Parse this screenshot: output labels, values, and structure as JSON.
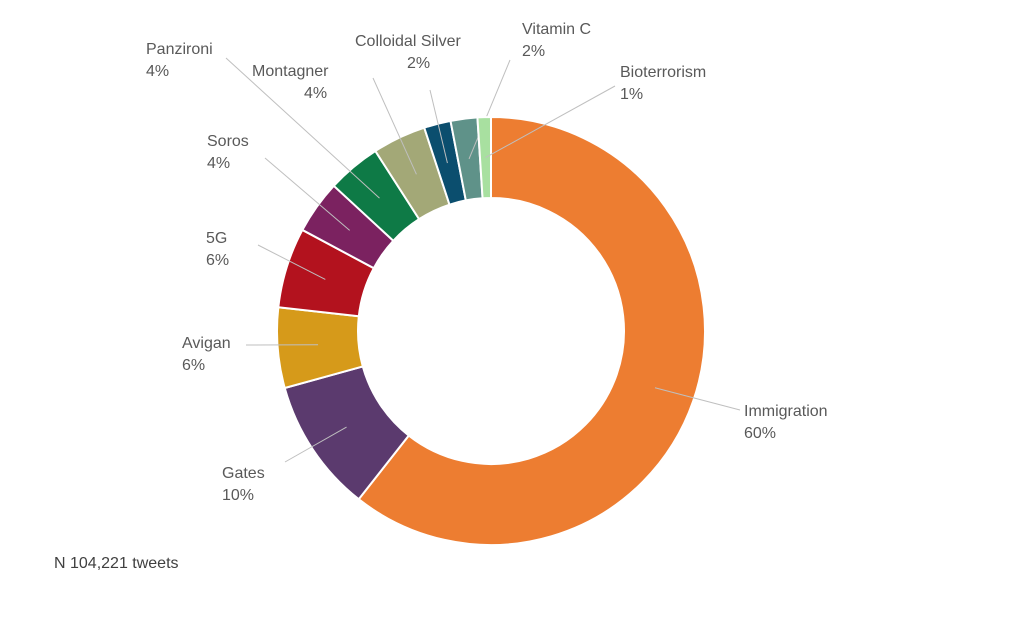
{
  "chart_data": {
    "type": "pie",
    "variant": "donut",
    "slices": [
      {
        "label": "Immigration",
        "percent_label": "60%",
        "value": 60,
        "color": "#ED7D31"
      },
      {
        "label": "Gates",
        "percent_label": "10%",
        "value": 10,
        "color": "#5B3A6E"
      },
      {
        "label": "Avigan",
        "percent_label": "6%",
        "value": 6,
        "color": "#D69A1A"
      },
      {
        "label": "5G",
        "percent_label": "6%",
        "value": 6,
        "color": "#B3121E"
      },
      {
        "label": "Soros",
        "percent_label": "4%",
        "value": 4,
        "color": "#7B2260"
      },
      {
        "label": "Panzironi",
        "percent_label": "4%",
        "value": 4,
        "color": "#0E7A46"
      },
      {
        "label": "Montagner",
        "percent_label": "4%",
        "value": 4,
        "color": "#A3A877"
      },
      {
        "label": "Colloidal Silver",
        "percent_label": "2%",
        "value": 2,
        "color": "#0B4E6E"
      },
      {
        "label": "Vitamin C",
        "percent_label": "2%",
        "value": 2,
        "color": "#5F9289"
      },
      {
        "label": "Bioterrorism",
        "percent_label": "1%",
        "value": 1,
        "color": "#A8E0A0"
      }
    ],
    "legend": "none",
    "data_labels": "outside with leader lines"
  },
  "footnote": "N 104,221 tweets"
}
